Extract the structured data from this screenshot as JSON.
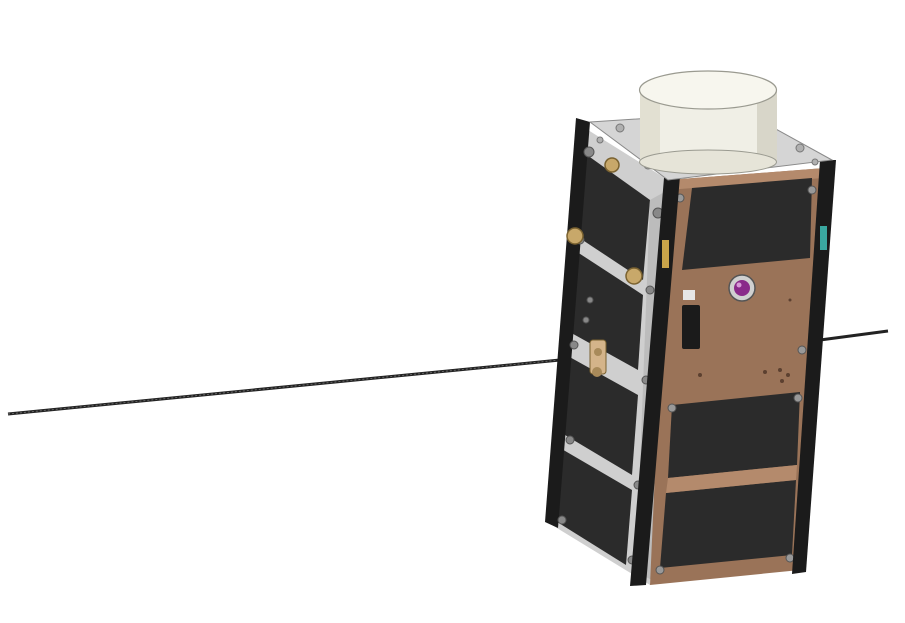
{
  "scene": {
    "description_label": "",
    "colors": {
      "background": "#ffffff",
      "tether": "#1a1a1a",
      "rail": "#1b1b1b",
      "panel": "#2b2b2b",
      "panel_dark": "#1f1f1f",
      "copper": "#9a7358",
      "copper_light": "#b48a6c",
      "aluminium": "#cfcfcf",
      "aluminium_dark": "#a9a9a9",
      "antenna_cap": "#f0efe6",
      "antenna_shade": "#d8d6c9",
      "lens": "#8a2a8a",
      "gold": "#c8a86a"
    },
    "icons": [
      "satellite-icon"
    ]
  }
}
